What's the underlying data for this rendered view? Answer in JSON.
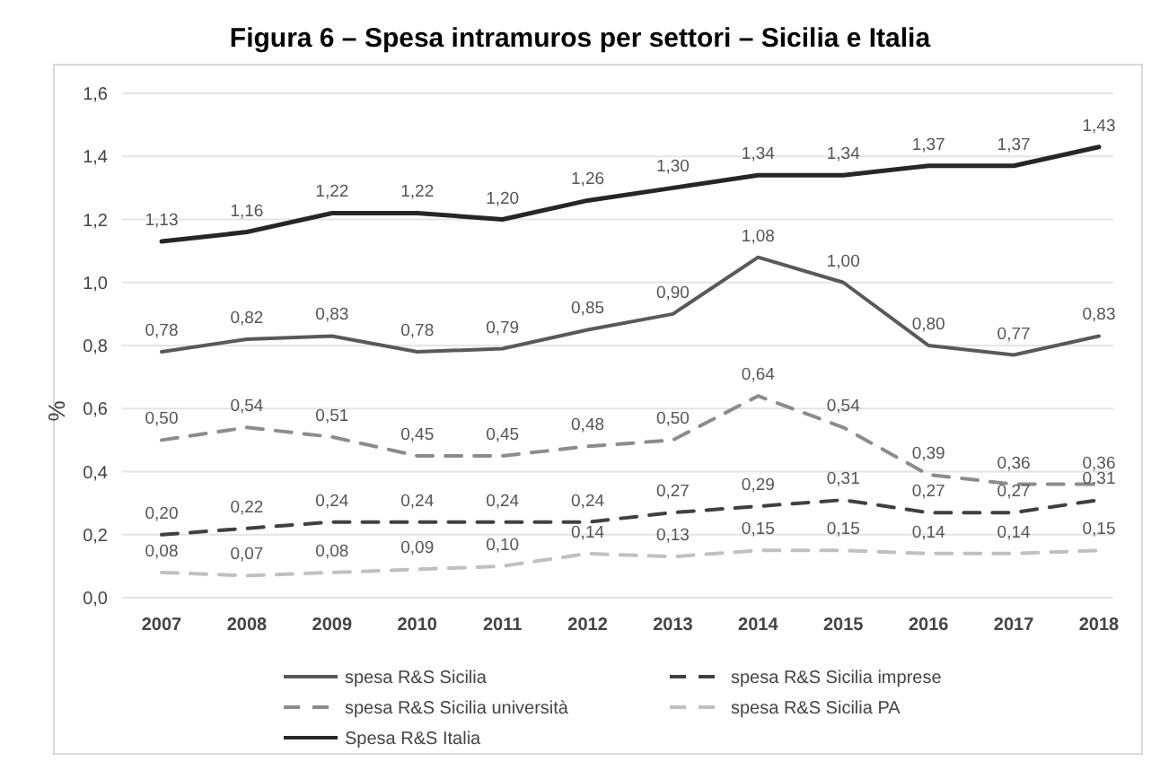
{
  "chart_data": {
    "type": "line",
    "title": "Figura 6 – Spesa intramuros per settori – Sicilia e Italia",
    "ylabel": "%",
    "categories": [
      "2007",
      "2008",
      "2009",
      "2010",
      "2011",
      "2012",
      "2013",
      "2014",
      "2015",
      "2016",
      "2017",
      "2018"
    ],
    "ylim": [
      0,
      1.6
    ],
    "yticks": [
      {
        "value": 0,
        "label": "0,0"
      },
      {
        "value": 0.2,
        "label": "0,2"
      },
      {
        "value": 0.4,
        "label": "0,4"
      },
      {
        "value": 0.6,
        "label": "0,6"
      },
      {
        "value": 0.8,
        "label": "0,8"
      },
      {
        "value": 1.0,
        "label": "1,0"
      },
      {
        "value": 1.2,
        "label": "1,2"
      },
      {
        "value": 1.4,
        "label": "1,4"
      },
      {
        "value": 1.6,
        "label": "1,6"
      }
    ],
    "grid": "y",
    "legend": "bottom",
    "marker": "none",
    "series": [
      {
        "name": "spesa R&S Sicilia",
        "color": "#595959",
        "line_style": "solid",
        "values": [
          0.78,
          0.82,
          0.83,
          0.78,
          0.79,
          0.85,
          0.9,
          1.08,
          1.0,
          0.8,
          0.77,
          0.83
        ],
        "value_labels": [
          "0,78",
          "0,82",
          "0,83",
          "0,78",
          "0,79",
          "0,85",
          "0,90",
          "1,08",
          "1,00",
          "0,80",
          "0,77",
          "0,83"
        ]
      },
      {
        "name": "spesa  R&S Sicilia imprese",
        "color": "#404040",
        "line_style": "dashed",
        "values": [
          0.2,
          0.22,
          0.24,
          0.24,
          0.24,
          0.24,
          0.27,
          0.29,
          0.31,
          0.27,
          0.27,
          0.31
        ],
        "value_labels": [
          "0,20",
          "0,22",
          "0,24",
          "0,24",
          "0,24",
          "0,24",
          "0,27",
          "0,29",
          "0,31",
          "0,27",
          "0,27",
          "0,31"
        ]
      },
      {
        "name": "spesa  R&S Sicilia università",
        "color": "#8c8c8c",
        "line_style": "dashed",
        "values": [
          0.5,
          0.54,
          0.51,
          0.45,
          0.45,
          0.48,
          0.5,
          0.64,
          0.54,
          0.39,
          0.36,
          0.36
        ],
        "value_labels": [
          "0,50",
          "0,54",
          "0,51",
          "0,45",
          "0,45",
          "0,48",
          "0,50",
          "0,64",
          "0,54",
          "0,39",
          "0,36",
          "0,36"
        ]
      },
      {
        "name": "spesa  R&S Sicilia PA",
        "color": "#c0c0c0",
        "line_style": "dashed",
        "values": [
          0.08,
          0.07,
          0.08,
          0.09,
          0.1,
          0.14,
          0.13,
          0.15,
          0.15,
          0.14,
          0.14,
          0.15
        ],
        "value_labels": [
          "0,08",
          "0,07",
          "0,08",
          "0,09",
          "0,10",
          "0,14",
          "0,13",
          "0,15",
          "0,15",
          "0,14",
          "0,14",
          "0,15"
        ]
      },
      {
        "name": "Spesa R&S Italia",
        "color": "#262626",
        "line_style": "solid",
        "values": [
          1.13,
          1.16,
          1.22,
          1.22,
          1.2,
          1.26,
          1.3,
          1.34,
          1.34,
          1.37,
          1.37,
          1.43
        ],
        "value_labels": [
          "1,13",
          "1,16",
          "1,22",
          "1,22",
          "1,20",
          "1,26",
          "1,30",
          "1,34",
          "1,34",
          "1,37",
          "1,37",
          "1,43"
        ]
      }
    ]
  }
}
